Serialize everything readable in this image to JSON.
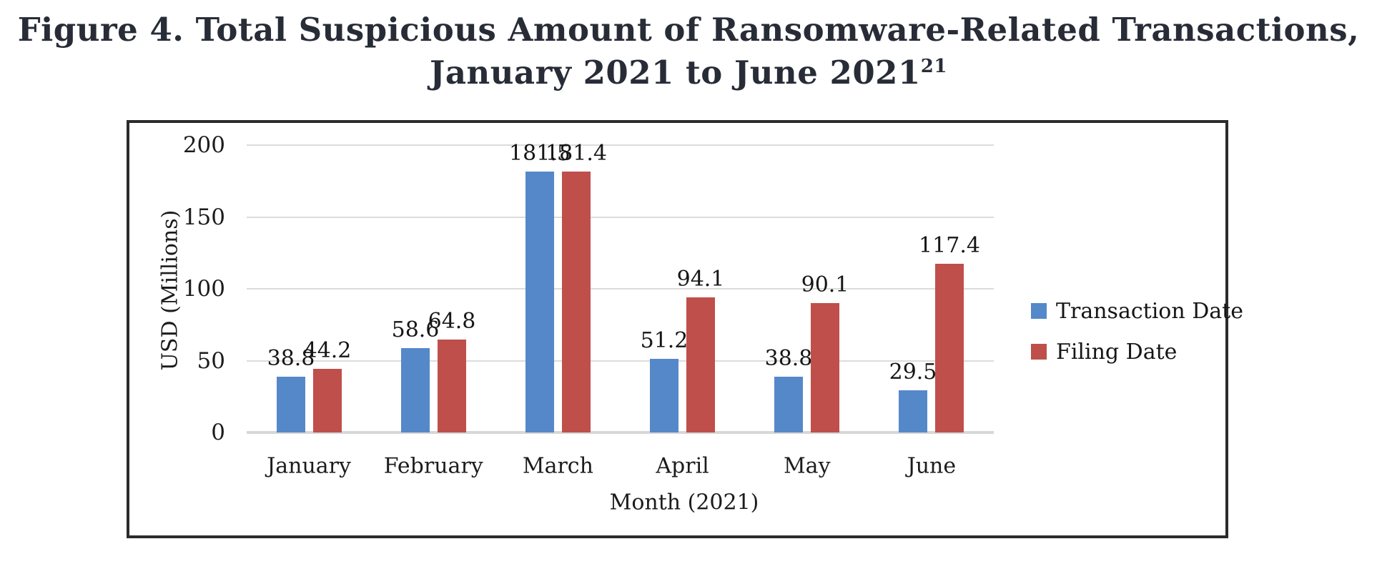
{
  "figure": {
    "title_line1": "Figure 4. Total Suspicious Amount of Ransomware-Related Transactions,",
    "title_line2": "January 2021 to June 2021",
    "title_superscript": "21"
  },
  "chart_data": {
    "type": "bar",
    "categories": [
      "January",
      "February",
      "March",
      "April",
      "May",
      "June"
    ],
    "series": [
      {
        "name": "Transaction Date",
        "color": "#5588c9",
        "values": [
          38.8,
          58.6,
          181.5,
          51.2,
          38.8,
          29.5
        ]
      },
      {
        "name": "Filing Date",
        "color": "#bf4f4b",
        "values": [
          44.2,
          64.8,
          181.4,
          94.1,
          90.1,
          117.4
        ]
      }
    ],
    "xlabel": "Month (2021)",
    "ylabel": "USD (Millions)",
    "ylim": [
      0,
      200
    ],
    "yticks": [
      0,
      50,
      100,
      150,
      200
    ],
    "grid": true,
    "legend_position": "right",
    "data_labels": true
  }
}
